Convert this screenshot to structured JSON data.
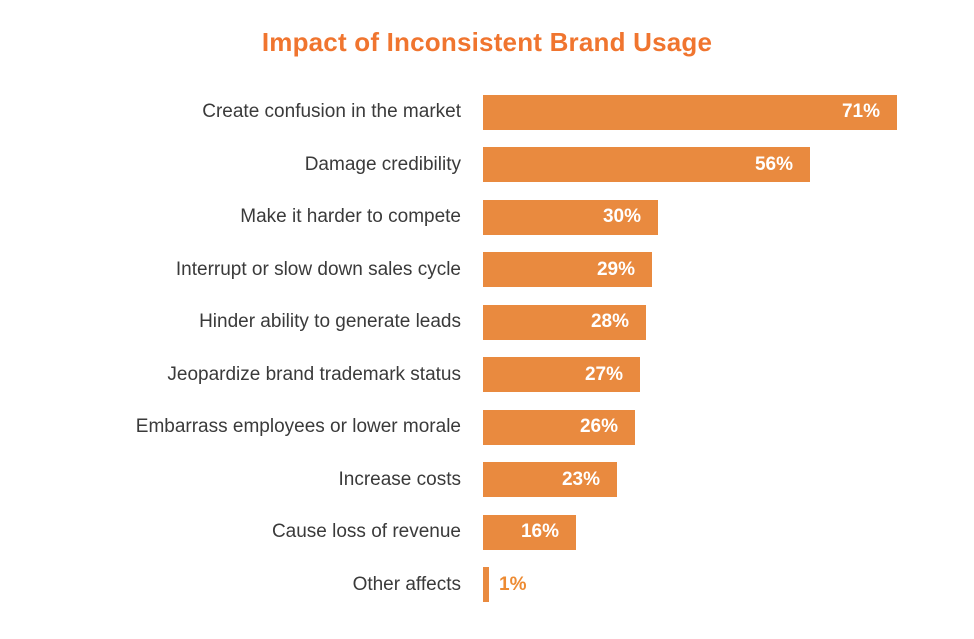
{
  "chart_data": {
    "type": "bar",
    "orientation": "horizontal",
    "title": "Impact of Inconsistent Brand Usage",
    "categories": [
      "Create confusion in the market",
      "Damage credibility",
      "Make it harder to compete",
      "Interrupt or slow down sales cycle",
      "Hinder ability to generate leads",
      "Jeopardize brand trademark status",
      "Embarrass employees or lower morale",
      "Increase costs",
      "Cause loss of revenue",
      "Other affects"
    ],
    "values": [
      71,
      56,
      30,
      29,
      28,
      27,
      26,
      23,
      16,
      1
    ],
    "value_suffix": "%",
    "xlim": [
      0,
      84
    ],
    "grid": false,
    "legend": "none",
    "value_label_position": "inside-end (outside-end in orange for very small bars)",
    "colors": {
      "background": "#FFFFFF",
      "bar": "#E98A3F",
      "title": "#F0752F",
      "category_label": "#3A3A3A",
      "value_inside": "#FFFFFF",
      "value_outside": "#ED8B33"
    }
  }
}
